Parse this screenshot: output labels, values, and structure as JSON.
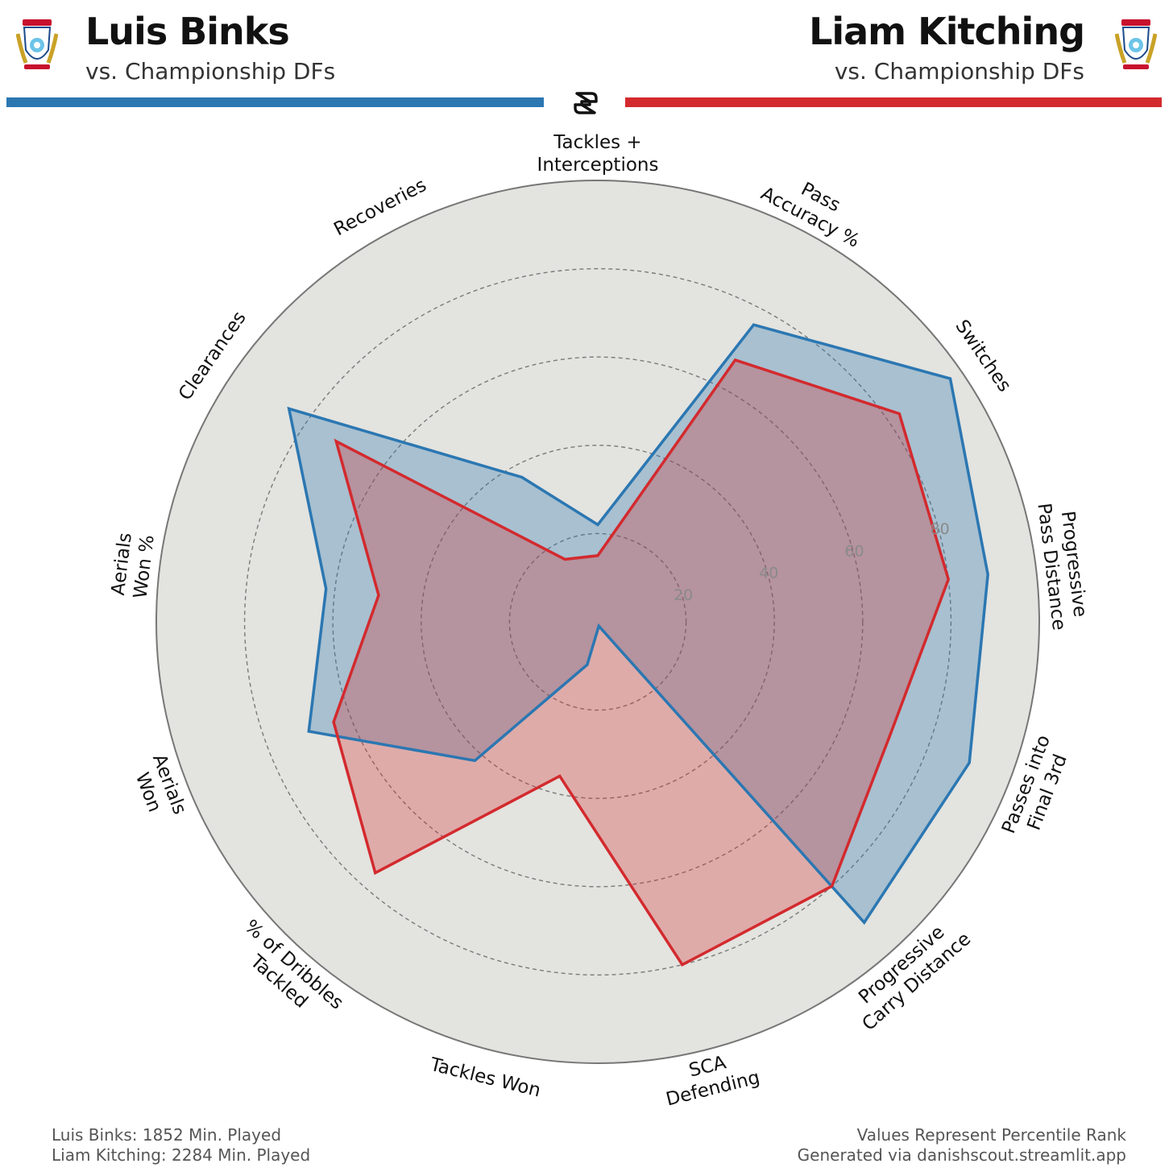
{
  "header": {
    "player1": {
      "name": "Luis Binks",
      "subtitle": "vs. Championship DFs"
    },
    "player2": {
      "name": "Liam Kitching",
      "subtitle": "vs. Championship DFs"
    }
  },
  "icons": {
    "crest": "club-crest-icon",
    "logo": "brand-logo-icon"
  },
  "colors": {
    "player1": "#2b77b2",
    "player2": "#d32a2e",
    "background_disc": "#e3e3df",
    "grid": "#7a7a7a"
  },
  "chart_data": {
    "type": "radar",
    "rmax": 100,
    "rings": [
      20,
      40,
      60,
      80
    ],
    "ring_labels": [
      "20",
      "40",
      "60",
      "80"
    ],
    "categories": [
      [
        "Tackles +",
        "Interceptions"
      ],
      [
        "Pass",
        "Accuracy %"
      ],
      [
        "Switches"
      ],
      [
        "Progressive",
        "Pass Distance"
      ],
      [
        "Passes into",
        "Final 3rd"
      ],
      [
        "Progressive",
        "Carry Distance"
      ],
      [
        "SCA",
        "Defending"
      ],
      [
        "Tackles Won"
      ],
      [
        "% of Dribbles",
        "Tackled"
      ],
      [
        "Aerials",
        "Won"
      ],
      [
        "Aerials",
        "Won %"
      ],
      [
        "Clearances"
      ],
      [
        "Recoveries"
      ]
    ],
    "series": [
      {
        "name": "Luis Binks",
        "values": [
          22,
          76,
          97,
          89,
          90,
          91,
          1,
          10,
          42,
          70,
          62,
          85,
          37
        ]
      },
      {
        "name": "Liam Kitching",
        "values": [
          15,
          67,
          83,
          80,
          71,
          80,
          80,
          36,
          76,
          64,
          50,
          72,
          16
        ]
      }
    ]
  },
  "footer": {
    "left": [
      "Luis Binks: 1852 Min. Played",
      "Liam Kitching: 2284 Min. Played"
    ],
    "right": [
      "Values Represent Percentile Rank",
      "Generated via danishscout.streamlit.app"
    ]
  }
}
